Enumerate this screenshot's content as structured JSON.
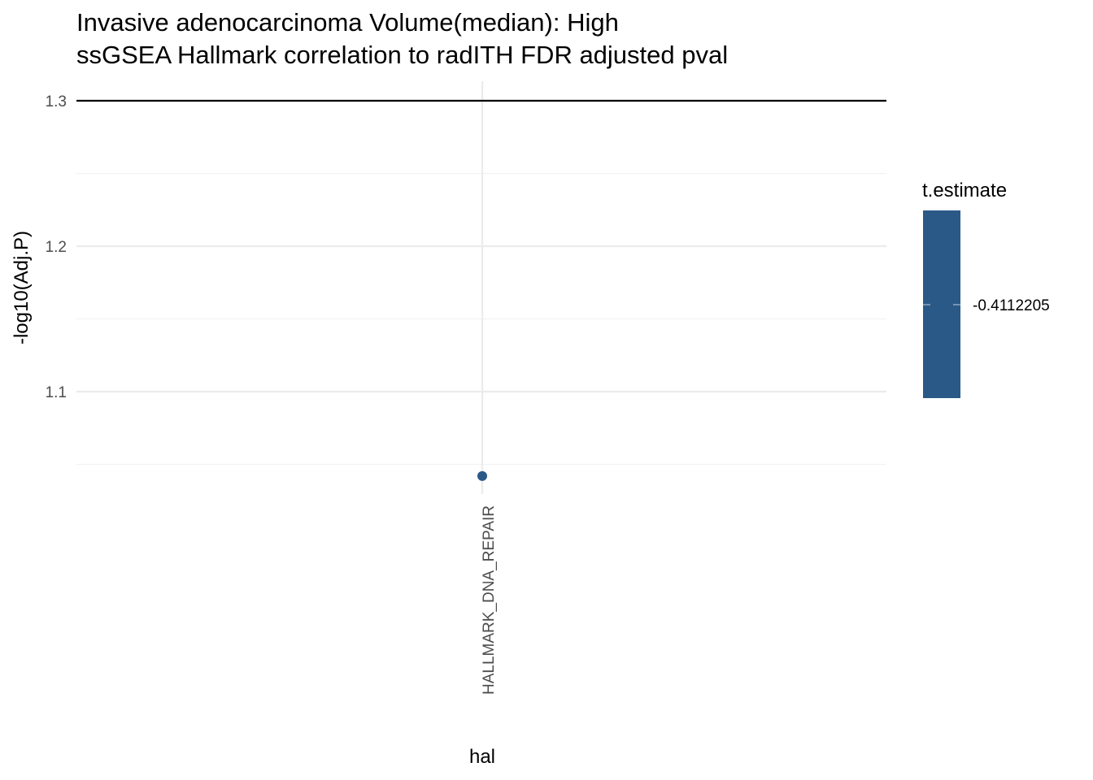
{
  "chart_data": {
    "type": "scatter",
    "title": "Invasive adenocarcinoma Volume(median): High",
    "subtitle": "ssGSEA Hallmark correlation to radITH FDR adjusted pval",
    "xlabel": "hal",
    "ylabel": "-log10(Adj.P)",
    "categories": [
      "HALLMARK_DNA_REPAIR"
    ],
    "points": [
      {
        "category": "HALLMARK_DNA_REPAIR",
        "y": 1.042,
        "t_estimate": -0.4112205
      }
    ],
    "ylim": [
      1.02,
      1.31
    ],
    "yticks": [
      {
        "value": 1.1,
        "label": "1.1"
      },
      {
        "value": 1.2,
        "label": "1.2"
      },
      {
        "value": 1.3,
        "label": "1.3"
      }
    ],
    "yminor": [
      1.05,
      1.15,
      1.25
    ],
    "reference_line": 1.3,
    "grid": true,
    "legend": {
      "title": "t.estimate",
      "label": "-0.4112205",
      "value": -0.4112205,
      "color": "#2b5987",
      "placement": "right"
    },
    "colors": {
      "point": "#2b5987",
      "grid_major": "#ebebeb",
      "grid_minor": "#f2f2f2",
      "reference_line": "#000000"
    }
  }
}
